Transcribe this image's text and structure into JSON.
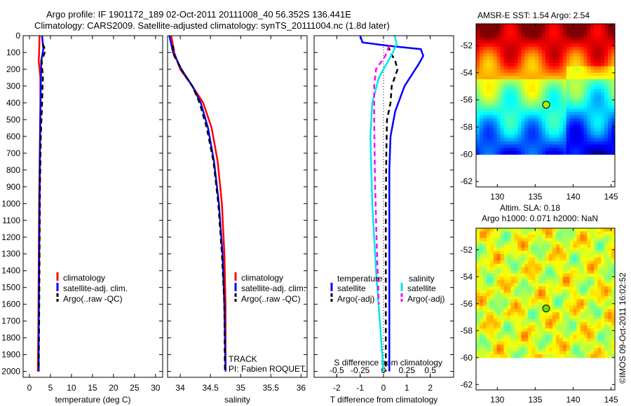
{
  "title_line1": "Argo profile: IF 1901172_189 02-Oct-2011 20111008_40 56.352S 136.441E",
  "title_line2": "Climatology: CARS2009. Satellite-adjusted climatology: synTS_20111004.nc (1.8d later)",
  "colors": {
    "climatology": "#ff0000",
    "satellite": "#0000ff",
    "argo": "#000000",
    "sal_satellite": "#00e5ee",
    "sal_argo": "#ff00ff"
  },
  "chart_data": [
    {
      "type": "line",
      "title": "",
      "xlabel": "temperature (deg C)",
      "ylabel": "",
      "xlim": [
        -1.5,
        31.7
      ],
      "ylim": [
        2035,
        0
      ],
      "xticks": [
        0,
        5,
        10,
        15,
        20,
        25,
        30
      ],
      "yticks": [
        0,
        100,
        200,
        300,
        400,
        500,
        600,
        700,
        800,
        900,
        1000,
        1100,
        1200,
        1300,
        1400,
        1500,
        1600,
        1700,
        1800,
        1900,
        2000
      ],
      "legend": [
        "climatology",
        "satellite-adj. clim.",
        "Argo(..raw -QC)"
      ],
      "series": [
        {
          "name": "climatology",
          "color": "#ff0000",
          "dash": false,
          "x": [
            2.4,
            2.3,
            2.2,
            2.6,
            2.6,
            2.5,
            2.4,
            2.3,
            2.2,
            2.1,
            2.0
          ],
          "y": [
            0,
            100,
            150,
            250,
            400,
            600,
            800,
            1000,
            1400,
            1800,
            2000
          ]
        },
        {
          "name": "satellite-adj. clim.",
          "color": "#0000ff",
          "dash": false,
          "x": [
            3.0,
            3.3,
            2.8,
            2.7,
            2.6,
            2.5,
            2.4,
            2.3,
            2.2,
            2.2
          ],
          "y": [
            0,
            80,
            150,
            300,
            500,
            700,
            1000,
            1400,
            1800,
            2000
          ]
        },
        {
          "name": "Argo(..raw -QC)",
          "color": "#000000",
          "dash": true,
          "x": [
            3.2,
            3.8,
            2.9,
            3.2,
            3.0,
            2.7,
            2.5,
            2.4,
            2.3,
            2.2
          ],
          "y": [
            50,
            90,
            150,
            250,
            400,
            600,
            900,
            1300,
            1700,
            2000
          ]
        }
      ]
    },
    {
      "type": "line",
      "title": "",
      "xlabel": "salinity",
      "ylabel": "",
      "xlim": [
        33.79,
        36.1
      ],
      "ylim": [
        2035,
        0
      ],
      "xticks": [
        34,
        34.5,
        35,
        35.5,
        36
      ],
      "legend": [
        "climatology",
        "satellite-adj. clim.",
        "Argo(..raw -QC)"
      ],
      "annotations": [
        "TRACK",
        "PI: Fabien ROQUET"
      ],
      "series": [
        {
          "name": "climatology",
          "color": "#ff0000",
          "dash": false,
          "x": [
            33.85,
            33.9,
            34.0,
            34.2,
            34.38,
            34.52,
            34.62,
            34.69,
            34.73,
            34.75,
            34.75
          ],
          "y": [
            0,
            100,
            200,
            300,
            400,
            550,
            750,
            1000,
            1300,
            1600,
            2000
          ]
        },
        {
          "name": "satellite-adj. clim.",
          "color": "#0000ff",
          "dash": false,
          "x": [
            33.82,
            33.88,
            34.02,
            34.2,
            34.34,
            34.46,
            34.56,
            34.64,
            34.7,
            34.73,
            34.75
          ],
          "y": [
            0,
            100,
            200,
            300,
            400,
            550,
            750,
            1000,
            1300,
            1600,
            2000
          ]
        },
        {
          "name": "Argo(..raw -QC)",
          "color": "#000000",
          "dash": true,
          "x": [
            33.88,
            33.9,
            34.05,
            34.2,
            34.32,
            34.44,
            34.55,
            34.63,
            34.69,
            34.73,
            34.74
          ],
          "y": [
            60,
            120,
            220,
            300,
            400,
            550,
            750,
            1000,
            1300,
            1600,
            2000
          ]
        }
      ]
    },
    {
      "type": "line",
      "title": "",
      "xlabel": "T difference from climatology",
      "x2label": "S difference from climatology",
      "xlim": [
        -2.97,
        3.0
      ],
      "ylim": [
        2035,
        0
      ],
      "xticks": [
        -2,
        -1,
        0,
        1,
        2
      ],
      "x2ticks": [
        -0.5,
        -0.25,
        0,
        0.25,
        0.5
      ],
      "x2tick_labels": [
        "-0.5",
        "-0.25",
        "0",
        "0.25",
        "0.5"
      ],
      "legend_titles": [
        "temperature",
        "salinity"
      ],
      "legend": [
        "satellite",
        "Argo(-adj)",
        "satellite",
        "Argo(-adj)"
      ],
      "series": [
        {
          "name": "T satellite",
          "color": "#0000ff",
          "dash": false,
          "axis": "T",
          "x": [
            -1.0,
            -0.9,
            0.2,
            1.6,
            1.7,
            1.5,
            0.9,
            0.5,
            0.3,
            0.25,
            0.25,
            0.25,
            0.25
          ],
          "y": [
            0,
            40,
            60,
            80,
            120,
            170,
            300,
            450,
            600,
            800,
            1200,
            1600,
            2000
          ]
        },
        {
          "name": "T Argo(-adj)",
          "color": "#000000",
          "dash": true,
          "axis": "T",
          "x": [
            0.2,
            0.3,
            0.5,
            0.6,
            0.35,
            0.3,
            0.15,
            0.12,
            0.1,
            0.1,
            0.1
          ],
          "y": [
            60,
            100,
            150,
            200,
            300,
            400,
            500,
            700,
            1000,
            1500,
            2000
          ]
        },
        {
          "name": "S satellite",
          "color": "#00e5ee",
          "dash": false,
          "axis": "S",
          "x": [
            0.12,
            0.14,
            0.1,
            0.05,
            -0.05,
            -0.12,
            -0.14,
            -0.12,
            -0.08,
            -0.04,
            0.0
          ],
          "y": [
            0,
            50,
            100,
            150,
            250,
            400,
            600,
            1000,
            1400,
            1700,
            2000
          ]
        },
        {
          "name": "S Argo(-adj)",
          "color": "#ff00ff",
          "dash": true,
          "axis": "S",
          "x": [
            0.06,
            0.02,
            -0.08,
            -0.1,
            -0.1,
            -0.09,
            -0.07,
            -0.05
          ],
          "y": [
            60,
            120,
            200,
            300,
            500,
            900,
            1300,
            1600
          ]
        }
      ]
    },
    {
      "type": "heatmap",
      "title": "AMSR-E SST: 1.54 Argo: 2.54",
      "xlim": [
        127.2,
        145.5
      ],
      "ylim": [
        -62.4,
        -50.4
      ],
      "data_lat_min": -60,
      "xticks": [
        130,
        135,
        140,
        145
      ],
      "yticks": [
        -52,
        -54,
        -56,
        -58,
        -60,
        -62
      ],
      "marker": {
        "lon": 136.441,
        "lat": -56.352
      }
    },
    {
      "type": "heatmap",
      "title": "Altim. SLA: 0.18",
      "subtitle": "Argo h1000: 0.071 h2000: NaN",
      "xlim": [
        127.2,
        145.5
      ],
      "ylim": [
        -62.4,
        -50.4
      ],
      "data_lat_min": -60,
      "xticks": [
        130,
        135,
        140,
        145
      ],
      "yticks": [
        -52,
        -54,
        -56,
        -58,
        -60,
        -62
      ],
      "marker": {
        "lon": 136.441,
        "lat": -56.352
      }
    }
  ],
  "credit": "©IMOS 09-Oct-2011 16:02:52"
}
